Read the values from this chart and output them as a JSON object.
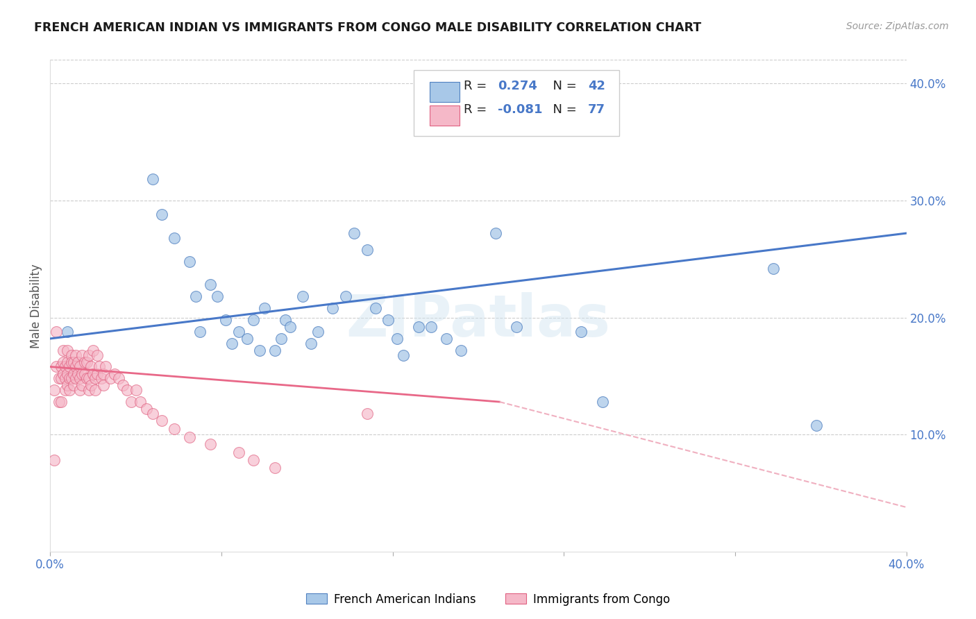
{
  "title": "FRENCH AMERICAN INDIAN VS IMMIGRANTS FROM CONGO MALE DISABILITY CORRELATION CHART",
  "source": "Source: ZipAtlas.com",
  "ylabel": "Male Disability",
  "xlim": [
    0.0,
    0.4
  ],
  "ylim": [
    0.0,
    0.42
  ],
  "xtick_positions": [
    0.0,
    0.08,
    0.16,
    0.24,
    0.32,
    0.4
  ],
  "xtick_labels": [
    "0.0%",
    "",
    "",
    "",
    "",
    "40.0%"
  ],
  "ytick_positions": [
    0.1,
    0.2,
    0.3,
    0.4
  ],
  "ytick_labels": [
    "10.0%",
    "20.0%",
    "30.0%",
    "40.0%"
  ],
  "blue_R": 0.274,
  "blue_N": 42,
  "pink_R": -0.081,
  "pink_N": 77,
  "legend_label_blue": "French American Indians",
  "legend_label_pink": "Immigrants from Congo",
  "blue_color": "#a8c8e8",
  "pink_color": "#f5b8c8",
  "blue_edge_color": "#5080c0",
  "pink_edge_color": "#e06080",
  "blue_line_color": "#4878c8",
  "pink_line_color": "#e86888",
  "pink_dash_color": "#f0b0c0",
  "watermark": "ZIPatlas",
  "blue_scatter_x": [
    0.008,
    0.048,
    0.052,
    0.058,
    0.065,
    0.068,
    0.07,
    0.075,
    0.078,
    0.082,
    0.085,
    0.088,
    0.092,
    0.095,
    0.098,
    0.1,
    0.105,
    0.108,
    0.11,
    0.112,
    0.118,
    0.122,
    0.125,
    0.132,
    0.138,
    0.142,
    0.148,
    0.152,
    0.158,
    0.162,
    0.165,
    0.172,
    0.178,
    0.185,
    0.192,
    0.198,
    0.208,
    0.218,
    0.248,
    0.258,
    0.338,
    0.358
  ],
  "blue_scatter_y": [
    0.188,
    0.318,
    0.288,
    0.268,
    0.248,
    0.218,
    0.188,
    0.228,
    0.218,
    0.198,
    0.178,
    0.188,
    0.182,
    0.198,
    0.172,
    0.208,
    0.172,
    0.182,
    0.198,
    0.192,
    0.218,
    0.178,
    0.188,
    0.208,
    0.218,
    0.272,
    0.258,
    0.208,
    0.198,
    0.182,
    0.168,
    0.192,
    0.192,
    0.182,
    0.172,
    0.362,
    0.272,
    0.192,
    0.188,
    0.128,
    0.242,
    0.108
  ],
  "pink_scatter_x": [
    0.002,
    0.002,
    0.003,
    0.003,
    0.004,
    0.004,
    0.005,
    0.005,
    0.005,
    0.006,
    0.006,
    0.006,
    0.007,
    0.007,
    0.007,
    0.008,
    0.008,
    0.008,
    0.008,
    0.009,
    0.009,
    0.009,
    0.01,
    0.01,
    0.01,
    0.011,
    0.011,
    0.011,
    0.012,
    0.012,
    0.012,
    0.013,
    0.013,
    0.014,
    0.014,
    0.014,
    0.015,
    0.015,
    0.015,
    0.016,
    0.016,
    0.017,
    0.017,
    0.018,
    0.018,
    0.018,
    0.019,
    0.019,
    0.02,
    0.02,
    0.021,
    0.021,
    0.022,
    0.022,
    0.023,
    0.024,
    0.025,
    0.025,
    0.026,
    0.028,
    0.03,
    0.032,
    0.034,
    0.036,
    0.038,
    0.04,
    0.042,
    0.045,
    0.048,
    0.052,
    0.058,
    0.065,
    0.075,
    0.088,
    0.095,
    0.105,
    0.148
  ],
  "pink_scatter_y": [
    0.138,
    0.078,
    0.188,
    0.158,
    0.148,
    0.128,
    0.158,
    0.148,
    0.128,
    0.172,
    0.162,
    0.152,
    0.158,
    0.148,
    0.138,
    0.172,
    0.162,
    0.152,
    0.142,
    0.158,
    0.148,
    0.138,
    0.168,
    0.162,
    0.148,
    0.162,
    0.152,
    0.142,
    0.168,
    0.158,
    0.148,
    0.162,
    0.152,
    0.158,
    0.148,
    0.138,
    0.168,
    0.152,
    0.142,
    0.162,
    0.152,
    0.162,
    0.148,
    0.168,
    0.148,
    0.138,
    0.158,
    0.142,
    0.172,
    0.152,
    0.148,
    0.138,
    0.168,
    0.152,
    0.158,
    0.148,
    0.152,
    0.142,
    0.158,
    0.148,
    0.152,
    0.148,
    0.142,
    0.138,
    0.128,
    0.138,
    0.128,
    0.122,
    0.118,
    0.112,
    0.105,
    0.098,
    0.092,
    0.085,
    0.078,
    0.072,
    0.118
  ]
}
